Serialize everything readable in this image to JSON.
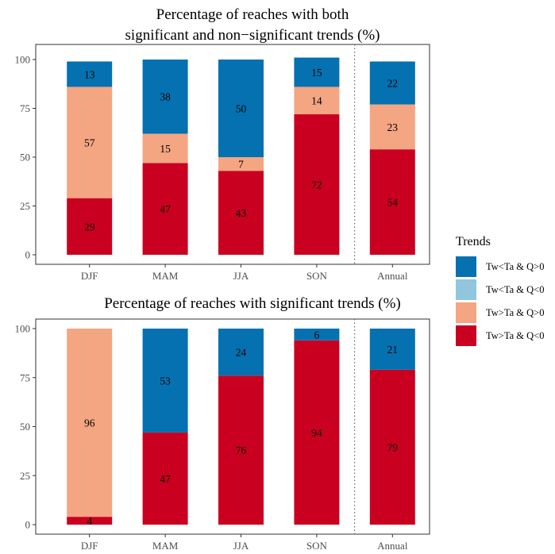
{
  "colors": {
    "Tw<Ta & Q>0": "#0571b0",
    "Tw<Ta & Q<0": "#92c5de",
    "Tw>Ta & Q>0": "#f4a582",
    "Tw>Ta & Q<0": "#ca0020"
  },
  "legend": {
    "title": "Trends",
    "items": [
      "Tw<Ta & Q>0",
      "Tw<Ta & Q<0",
      "Tw>Ta & Q>0",
      "Tw>Ta & Q<0"
    ]
  },
  "chart_data": [
    {
      "type": "bar",
      "stacked": true,
      "title": "Percentage of reaches with both\nsignificant and non−significant trends (%)",
      "categories": [
        "DJF",
        "MAM",
        "JJA",
        "SON",
        "Annual"
      ],
      "ylim": [
        0,
        100
      ],
      "yticks": [
        0,
        25,
        50,
        75,
        100
      ],
      "grid": false,
      "separator_before": "Annual",
      "series": [
        {
          "name": "Tw>Ta & Q<0",
          "values": [
            29,
            47,
            43,
            72,
            54
          ]
        },
        {
          "name": "Tw>Ta & Q>0",
          "values": [
            57,
            15,
            7,
            14,
            23
          ]
        },
        {
          "name": "Tw<Ta & Q<0",
          "values": [
            0,
            0,
            0,
            0,
            0
          ]
        },
        {
          "name": "Tw<Ta & Q>0",
          "values": [
            13,
            38,
            50,
            15,
            22
          ]
        }
      ]
    },
    {
      "type": "bar",
      "stacked": true,
      "title": "Percentage of reaches with significant trends (%)",
      "categories": [
        "DJF",
        "MAM",
        "JJA",
        "SON",
        "Annual"
      ],
      "ylim": [
        0,
        100
      ],
      "yticks": [
        0,
        25,
        50,
        75,
        100
      ],
      "grid": false,
      "separator_before": "Annual",
      "series": [
        {
          "name": "Tw>Ta & Q<0",
          "values": [
            4,
            47,
            76,
            94,
            79
          ]
        },
        {
          "name": "Tw>Ta & Q>0",
          "values": [
            96,
            0,
            0,
            0,
            0
          ]
        },
        {
          "name": "Tw<Ta & Q<0",
          "values": [
            0,
            0,
            0,
            0,
            0
          ]
        },
        {
          "name": "Tw<Ta & Q>0",
          "values": [
            0,
            53,
            24,
            6,
            21
          ]
        }
      ]
    }
  ]
}
